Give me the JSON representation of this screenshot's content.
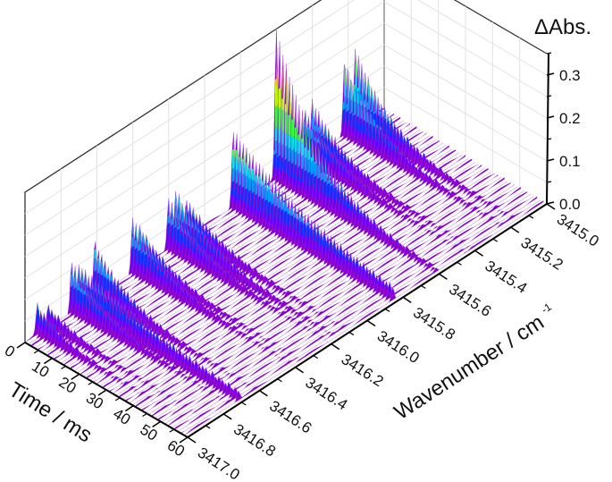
{
  "chart_data": {
    "type": "surface3d",
    "title": "",
    "zlabel": "ΔAbs.",
    "xlabel": "Time / ms",
    "ylabel": "Wavenumber / cm⁻¹",
    "xlim": [
      0,
      60
    ],
    "ylim": [
      3417.0,
      3415.0
    ],
    "zlim": [
      0.0,
      0.35
    ],
    "x_ticks": [
      "0",
      "10",
      "20",
      "30",
      "40",
      "50",
      "60"
    ],
    "y_ticks": [
      "3417.0",
      "3416.8",
      "3416.6",
      "3416.4",
      "3416.2",
      "3416.0",
      "3415.8",
      "3415.6",
      "3415.4",
      "3415.2",
      "3415.0"
    ],
    "z_ticks": [
      "0.0",
      "0.1",
      "0.2",
      "0.3"
    ],
    "grid": true,
    "colormap": "rainbow (purple → blue → cyan → green → yellow → red)",
    "peaks": [
      {
        "wavenumber": 3416.93,
        "peak_abs": 0.07,
        "decay_ms": 12
      },
      {
        "wavenumber": 3416.87,
        "peak_abs": 0.05,
        "decay_ms": 14
      },
      {
        "wavenumber": 3416.74,
        "peak_abs": 0.12,
        "decay_ms": 14
      },
      {
        "wavenumber": 3416.7,
        "peak_abs": 0.1,
        "decay_ms": 40
      },
      {
        "wavenumber": 3416.61,
        "peak_abs": 0.13,
        "decay_ms": 14
      },
      {
        "wavenumber": 3416.4,
        "peak_abs": 0.13,
        "decay_ms": 14
      },
      {
        "wavenumber": 3416.36,
        "peak_abs": 0.1,
        "decay_ms": 14
      },
      {
        "wavenumber": 3416.2,
        "peak_abs": 0.12,
        "decay_ms": 14
      },
      {
        "wavenumber": 3416.16,
        "peak_abs": 0.13,
        "decay_ms": 16
      },
      {
        "wavenumber": 3416.1,
        "peak_abs": 0.09,
        "decay_ms": 16
      },
      {
        "wavenumber": 3415.84,
        "peak_abs": 0.18,
        "decay_ms": 35
      },
      {
        "wavenumber": 3415.6,
        "peak_abs": 0.35,
        "decay_ms": 16
      },
      {
        "wavenumber": 3415.44,
        "peak_abs": 0.12,
        "decay_ms": 14
      },
      {
        "wavenumber": 3415.4,
        "peak_abs": 0.13,
        "decay_ms": 14
      },
      {
        "wavenumber": 3415.22,
        "peak_abs": 0.18,
        "decay_ms": 14
      },
      {
        "wavenumber": 3415.16,
        "peak_abs": 0.19,
        "decay_ms": 14
      }
    ]
  },
  "labels": {
    "z_title": "ΔAbs.",
    "x_title": "Time / ms",
    "y_title": "Wavenumber / cm",
    "y_title_sup": "-1"
  }
}
